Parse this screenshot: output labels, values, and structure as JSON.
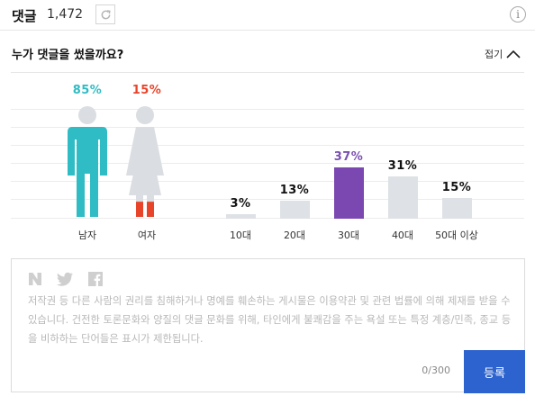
{
  "header": {
    "title": "댓글",
    "count": "1,472"
  },
  "stats": {
    "title": "누가 댓글을 썼을까요?",
    "toggle_label": "접기"
  },
  "chart_data": [
    {
      "type": "bar",
      "categories": [
        "남자",
        "여자"
      ],
      "values": [
        85,
        15
      ],
      "value_labels": [
        "85%",
        "15%"
      ],
      "colors": {
        "남자": "#2fbcc4",
        "여자": "#e8442a"
      }
    },
    {
      "type": "bar",
      "categories": [
        "10대",
        "20대",
        "30대",
        "40대",
        "50대 이상"
      ],
      "values": [
        3,
        13,
        37,
        31,
        15
      ],
      "value_labels": [
        "3%",
        "13%",
        "37%",
        "31%",
        "15%"
      ],
      "highlight": "30대",
      "colors": {
        "bar": "#dee1e5",
        "highlight": "#7b47b0"
      }
    }
  ],
  "comment_box": {
    "notice": "저작권 등 다른 사람의 권리를 침해하거나 명예를 훼손하는 게시물은 이용약관 및 관련 법률에 의해 제재를 받을 수 있습니다. 건전한 토론문화와 양질의 댓글 문화를 위해, 타인에게 불쾌감을 주는 욕설 또는 특정 계층/민족, 종교 등을 비하하는 단어들은 표시가 제한됩니다.",
    "counter": "0/300",
    "submit_label": "등록",
    "social_icons": [
      "naver-icon",
      "twitter-icon",
      "facebook-icon"
    ]
  }
}
